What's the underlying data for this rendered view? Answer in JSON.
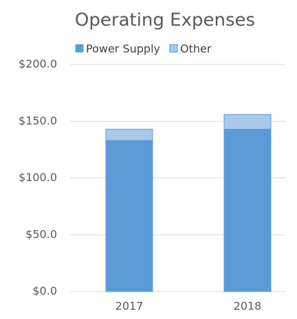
{
  "chart_data": {
    "type": "stacked_bar",
    "title": "Operating Expenses",
    "categories": [
      "2017",
      "2018"
    ],
    "series": [
      {
        "name": "Power Supply",
        "color": "#5b9bd5",
        "values": [
          133,
          143
        ]
      },
      {
        "name": "Other",
        "color": "#a9c8ea",
        "values": [
          10,
          13
        ]
      }
    ],
    "ylim": [
      0,
      200
    ],
    "yticks": [
      {
        "value": 0,
        "label": "$0.0"
      },
      {
        "value": 50,
        "label": "$50.0"
      },
      {
        "value": 100,
        "label": "$100.0"
      },
      {
        "value": 150,
        "label": "$150.0"
      },
      {
        "value": 200,
        "label": "$200.0"
      }
    ],
    "grid": true,
    "legend": "top"
  }
}
